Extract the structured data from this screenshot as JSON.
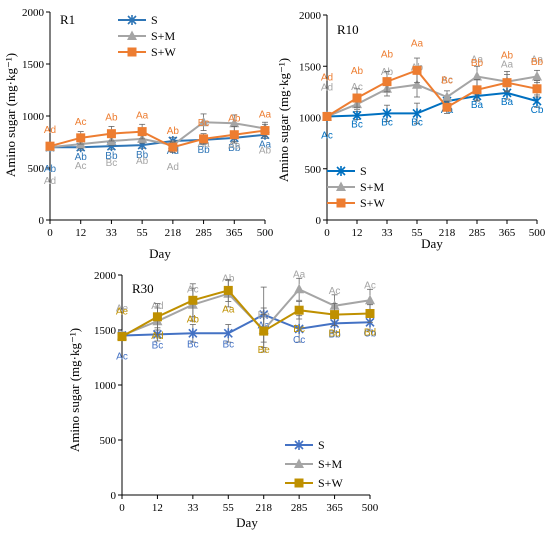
{
  "chart_data": [
    {
      "type": "line",
      "title": "R1",
      "xlabel": "Day",
      "ylabel": "Amino sugar  (mg·kg⁻¹)",
      "ylim": [
        0,
        2000
      ],
      "yticks": [
        0,
        500,
        1000,
        1500,
        2000
      ],
      "x": [
        "0",
        "12",
        "33",
        "55",
        "218",
        "285",
        "365",
        "500"
      ],
      "legend_position": "top-right",
      "series": [
        {
          "name": "S",
          "color": "#2E75B6",
          "marker": "x-star",
          "values": [
            700,
            700,
            710,
            720,
            760,
            770,
            790,
            820
          ],
          "errors": [
            30,
            30,
            30,
            30,
            35,
            35,
            35,
            35
          ],
          "labels": [
            "Ab",
            "Ab",
            "Bb",
            "Bb",
            "Ad",
            "Bb",
            "Bb",
            "Aa"
          ]
        },
        {
          "name": "S+M",
          "color": "#A5A5A5",
          "marker": "triangle",
          "values": [
            700,
            730,
            760,
            780,
            720,
            940,
            930,
            880
          ],
          "errors": [
            30,
            40,
            40,
            40,
            40,
            80,
            80,
            60
          ],
          "labels": [
            "Ad",
            "Ac",
            "Bc",
            "Ab",
            "Ad",
            "Aa",
            "Aa",
            "Ab"
          ]
        },
        {
          "name": "S+W",
          "color": "#ED7D31",
          "marker": "square",
          "values": [
            710,
            790,
            830,
            850,
            700,
            780,
            820,
            860
          ],
          "errors": [
            30,
            60,
            70,
            70,
            50,
            50,
            80,
            60
          ],
          "labels": [
            "Ad",
            "Ac",
            "Ab",
            "Aa",
            "Ab",
            "Bc",
            "Ab",
            "Aa"
          ]
        }
      ]
    },
    {
      "type": "line",
      "title": "R10",
      "xlabel": "Day",
      "ylabel": "Amino sugar  (mg·kg⁻¹)",
      "ylim": [
        0,
        2000
      ],
      "yticks": [
        0,
        500,
        1000,
        1500,
        2000
      ],
      "x": [
        "0",
        "12",
        "33",
        "55",
        "218",
        "285",
        "365",
        "500"
      ],
      "legend_position": "bottom-left",
      "series": [
        {
          "name": "S",
          "color": "#0070C0",
          "marker": "x-star",
          "values": [
            1010,
            1020,
            1040,
            1040,
            1160,
            1210,
            1240,
            1160
          ],
          "errors": [
            40,
            40,
            80,
            100,
            50,
            50,
            60,
            60
          ],
          "labels": [
            "Ac",
            "Bc",
            "Bc",
            "Bc",
            "Aa",
            "Ba",
            "Ba",
            "Cb"
          ]
        },
        {
          "name": "S+M",
          "color": "#A5A5A5",
          "marker": "triangle",
          "values": [
            1010,
            1130,
            1280,
            1320,
            1200,
            1400,
            1350,
            1400
          ],
          "errors": [
            40,
            50,
            70,
            120,
            60,
            100,
            100,
            60
          ],
          "labels": [
            "Ad",
            "Ac",
            "Ab",
            "Ab",
            "Ac",
            "Aa",
            "Aa",
            "Aa"
          ]
        },
        {
          "name": "S+W",
          "color": "#ED7D31",
          "marker": "square",
          "values": [
            1010,
            1190,
            1350,
            1460,
            1100,
            1270,
            1340,
            1280
          ],
          "errors": [
            40,
            90,
            100,
            120,
            60,
            100,
            80,
            80
          ],
          "labels": [
            "Ad",
            "Ab",
            "Ab",
            "Aa",
            "Bc",
            "Bb",
            "Ab",
            "Bb"
          ]
        }
      ]
    },
    {
      "type": "line",
      "title": "R30",
      "xlabel": "Day",
      "ylabel": "Amino sugar  (mg·kg⁻¹)",
      "ylim": [
        0,
        2000
      ],
      "yticks": [
        0,
        500,
        1000,
        1500,
        2000
      ],
      "x": [
        "0",
        "12",
        "33",
        "55",
        "218",
        "285",
        "365",
        "500"
      ],
      "legend_position": "bottom-right",
      "series": [
        {
          "name": "S",
          "color": "#4472C4",
          "marker": "x-star",
          "values": [
            1450,
            1460,
            1470,
            1470,
            1640,
            1510,
            1560,
            1570
          ],
          "errors": [
            30,
            60,
            80,
            80,
            250,
            120,
            80,
            80
          ],
          "labels": [
            "Ac",
            "Bc",
            "Bc",
            "Bc",
            "Aa",
            "Cc",
            "Bb",
            "Cb"
          ]
        },
        {
          "name": "S+M",
          "color": "#A5A5A5",
          "marker": "triangle",
          "values": [
            1450,
            1580,
            1730,
            1830,
            1500,
            1870,
            1720,
            1770
          ],
          "errors": [
            30,
            120,
            150,
            120,
            200,
            100,
            100,
            100
          ],
          "labels": [
            "Ae",
            "Ad",
            "Ac",
            "Ab",
            "Be",
            "Aa",
            "Ac",
            "Ac"
          ]
        },
        {
          "name": "S+W",
          "color": "#BF9000",
          "marker": "square",
          "values": [
            1440,
            1620,
            1770,
            1860,
            1490,
            1680,
            1640,
            1650
          ],
          "errors": [
            30,
            120,
            150,
            100,
            150,
            80,
            100,
            80
          ],
          "labels": [
            "Ae",
            "Ad",
            "Ab",
            "Aa",
            "Be",
            "Bc",
            "Bd",
            "Bd"
          ]
        }
      ]
    }
  ]
}
